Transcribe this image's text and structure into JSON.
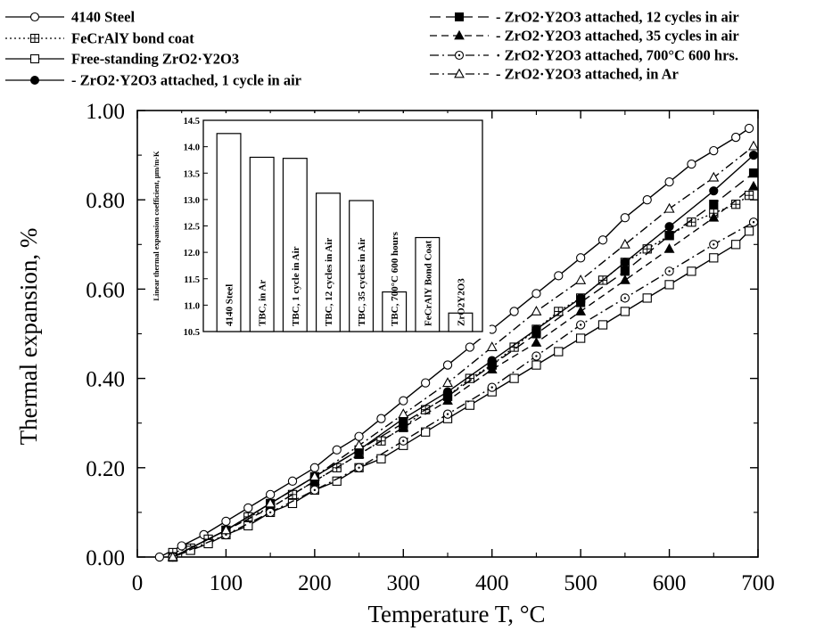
{
  "chart_data": [
    {
      "type": "line",
      "title": "",
      "xlabel": "Temperature T, °C",
      "ylabel": "Thermal expansion, %",
      "xlim": [
        0,
        700
      ],
      "ylim": [
        0.0,
        1.0
      ],
      "x_ticks": [
        "0",
        "100",
        "200",
        "300",
        "400",
        "500",
        "600",
        "700"
      ],
      "y_ticks": [
        "0.00",
        "0.20",
        "0.40",
        "0.60",
        "0.80",
        "1.00"
      ],
      "grid": false,
      "legend_position": "top",
      "series": [
        {
          "name": "4140 Steel",
          "marker": "open-circle",
          "dash": "solid",
          "x": [
            25,
            50,
            75,
            100,
            125,
            150,
            175,
            200,
            225,
            250,
            275,
            300,
            325,
            350,
            375,
            400,
            425,
            450,
            475,
            500,
            525,
            550,
            575,
            600,
            625,
            650,
            675,
            690
          ],
          "y": [
            0.0,
            0.025,
            0.05,
            0.08,
            0.11,
            0.14,
            0.17,
            0.2,
            0.24,
            0.27,
            0.31,
            0.35,
            0.39,
            0.43,
            0.47,
            0.51,
            0.55,
            0.59,
            0.63,
            0.67,
            0.71,
            0.76,
            0.8,
            0.84,
            0.88,
            0.91,
            0.94,
            0.96
          ]
        },
        {
          "name": "FeCrAlY bond coat",
          "marker": "open-square-plus",
          "dash": "dotted",
          "x": [
            40,
            60,
            80,
            100,
            125,
            150,
            175,
            200,
            225,
            250,
            275,
            300,
            325,
            350,
            375,
            400,
            425,
            450,
            475,
            500,
            525,
            550,
            575,
            600,
            625,
            650,
            675,
            690
          ],
          "y": [
            0.01,
            0.02,
            0.04,
            0.06,
            0.09,
            0.11,
            0.14,
            0.17,
            0.2,
            0.23,
            0.26,
            0.29,
            0.33,
            0.36,
            0.4,
            0.43,
            0.47,
            0.51,
            0.55,
            0.58,
            0.62,
            0.66,
            0.69,
            0.72,
            0.75,
            0.77,
            0.79,
            0.81
          ]
        },
        {
          "name": "Free-standing ZrO2·Y2O3",
          "marker": "open-square",
          "dash": "solid",
          "x": [
            40,
            60,
            80,
            100,
            125,
            150,
            175,
            200,
            225,
            250,
            275,
            300,
            325,
            350,
            375,
            400,
            425,
            450,
            475,
            500,
            525,
            550,
            575,
            600,
            625,
            650,
            675,
            690
          ],
          "y": [
            0.0,
            0.015,
            0.03,
            0.05,
            0.07,
            0.1,
            0.12,
            0.15,
            0.17,
            0.2,
            0.22,
            0.25,
            0.28,
            0.31,
            0.34,
            0.37,
            0.4,
            0.43,
            0.46,
            0.49,
            0.52,
            0.55,
            0.58,
            0.61,
            0.64,
            0.67,
            0.7,
            0.73
          ]
        },
        {
          "name": "ZrO2·Y2O3 attached, 1 cycle in air",
          "marker": "filled-circle",
          "dash": "solid",
          "x": [
            40,
            100,
            150,
            200,
            250,
            300,
            350,
            400,
            450,
            500,
            550,
            600,
            650,
            695
          ],
          "y": [
            0.0,
            0.06,
            0.12,
            0.18,
            0.24,
            0.31,
            0.37,
            0.44,
            0.51,
            0.58,
            0.66,
            0.74,
            0.82,
            0.9
          ]
        },
        {
          "name": "ZrO2·Y2O3 attached, 12 cycles in air",
          "marker": "filled-square",
          "dash": "long-dash",
          "x": [
            40,
            100,
            150,
            200,
            250,
            300,
            350,
            400,
            450,
            500,
            550,
            600,
            650,
            695
          ],
          "y": [
            0.0,
            0.06,
            0.12,
            0.18,
            0.24,
            0.3,
            0.36,
            0.43,
            0.5,
            0.57,
            0.64,
            0.72,
            0.79,
            0.86
          ]
        },
        {
          "name": "ZrO2·Y2O3 attached, 35 cycles in air",
          "marker": "filled-triangle",
          "dash": "dashed",
          "x": [
            40,
            100,
            150,
            200,
            250,
            300,
            350,
            400,
            450,
            500,
            550,
            600,
            650,
            695
          ],
          "y": [
            0.0,
            0.06,
            0.11,
            0.17,
            0.23,
            0.29,
            0.35,
            0.42,
            0.48,
            0.55,
            0.62,
            0.69,
            0.76,
            0.83
          ]
        },
        {
          "name": "ZrO2·Y2O3 attached, 700°C 600 hrs.",
          "marker": "dotted-circle",
          "dash": "dash-dot",
          "x": [
            40,
            100,
            150,
            200,
            250,
            300,
            350,
            400,
            450,
            500,
            550,
            600,
            650,
            695
          ],
          "y": [
            0.0,
            0.05,
            0.1,
            0.15,
            0.2,
            0.26,
            0.32,
            0.38,
            0.45,
            0.52,
            0.58,
            0.64,
            0.7,
            0.75
          ]
        },
        {
          "name": "ZrO2·Y2O3 attached, in Ar",
          "marker": "open-triangle",
          "dash": "dash-dot",
          "x": [
            40,
            100,
            150,
            200,
            250,
            300,
            350,
            400,
            450,
            500,
            550,
            600,
            650,
            695
          ],
          "y": [
            0.0,
            0.06,
            0.12,
            0.18,
            0.25,
            0.32,
            0.39,
            0.47,
            0.55,
            0.62,
            0.7,
            0.78,
            0.85,
            0.92
          ]
        }
      ]
    },
    {
      "type": "bar",
      "title": "",
      "ylabel": "Linear thermal expansion coefficient, μm/m·K",
      "ylim": [
        10.5,
        14.5
      ],
      "y_ticks": [
        "10.5",
        "11.0",
        "11.5",
        "12.0",
        "12.5",
        "13.0",
        "13.5",
        "14.0",
        "14.5"
      ],
      "categories": [
        "4140 Steel",
        "TBC, in Ar",
        "TBC, 1 cycle in Air",
        "TBC, 12 cycles in Air",
        "TBC, 35 cycles in Air",
        "TBC, 700°C 600 hours",
        "FeCrAlY Bond Coat",
        "ZrO2Y2O3"
      ],
      "values": [
        14.25,
        13.8,
        13.78,
        13.12,
        12.98,
        11.25,
        12.28,
        10.85
      ]
    }
  ],
  "legend": {
    "left": [
      {
        "label": "4140 Steel",
        "marker": "open-circle",
        "dash": "solid"
      },
      {
        "label": "FeCrAlY bond coat",
        "marker": "open-square-plus",
        "dash": "dotted"
      },
      {
        "label": "Free-standing ZrO2·Y2O3",
        "marker": "open-square",
        "dash": "solid"
      },
      {
        "label": "- ZrO2·Y2O3 attached, 1 cycle in air",
        "marker": "filled-circle",
        "dash": "solid"
      }
    ],
    "right": [
      {
        "label": "- ZrO2·Y2O3 attached, 12 cycles in air",
        "marker": "filled-square",
        "dash": "long-dash"
      },
      {
        "label": "- ZrO2·Y2O3 attached, 35 cycles in air",
        "marker": "filled-triangle",
        "dash": "dashed"
      },
      {
        "label": "· ZrO2·Y2O3 attached, 700°C 600 hrs.",
        "marker": "dotted-circle",
        "dash": "dash-dot"
      },
      {
        "label": "- ZrO2·Y2O3 attached, in Ar",
        "marker": "open-triangle",
        "dash": "dash-dot"
      }
    ]
  }
}
